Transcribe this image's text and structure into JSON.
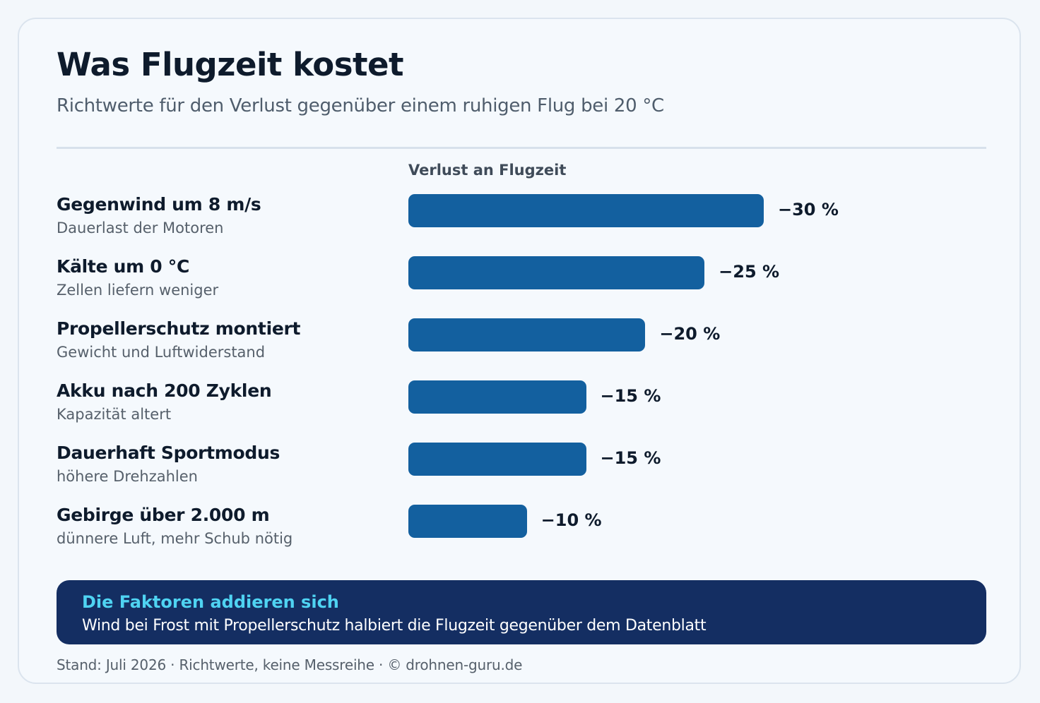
{
  "header": {
    "title": "Was Flugzeit kostet",
    "subtitle": "Richtwerte für den Verlust gegenüber einem ruhigen Flug bei 20 °C"
  },
  "chart_data": {
    "type": "bar",
    "orientation": "horizontal",
    "title": "Was Flugzeit kostet",
    "subtitle": "Richtwerte für den Verlust gegenüber einem ruhigen Flug bei 20 °C",
    "xlabel": "Verlust an Flugzeit",
    "unit": "%",
    "xlim": [
      0,
      30
    ],
    "grid": false,
    "bar_color": "#13609f",
    "categories": [
      "Gegenwind um 8 m/s",
      "Kälte um 0 °C",
      "Propellerschutz montiert",
      "Akku nach 200 Zyklen",
      "Dauerhaft Sportmodus",
      "Gebirge über 2.000 m"
    ],
    "notes": [
      "Dauerlast der Motoren",
      "Zellen liefern weniger",
      "Gewicht und Luftwiderstand",
      "Kapazität altert",
      "höhere Drehzahlen",
      "dünnere Luft, mehr Schub nötig"
    ],
    "values": [
      -30,
      -25,
      -20,
      -15,
      -15,
      -10
    ],
    "value_labels": [
      "−30 %",
      "−25 %",
      "−20 %",
      "−15 %",
      "−15 %",
      "−10 %"
    ]
  },
  "callout": {
    "title": "Die Faktoren addieren sich",
    "text": "Wind bei Frost mit Propellerschutz halbiert die Flugzeit gegenüber dem Datenblatt"
  },
  "footer": {
    "text": "Stand: Juli 2026 · Richtwerte, keine Messreihe · © drohnen-guru.de"
  },
  "colors": {
    "bar": "#13609f",
    "callout_bg": "#142e62",
    "callout_accent": "#4fd3f2"
  }
}
